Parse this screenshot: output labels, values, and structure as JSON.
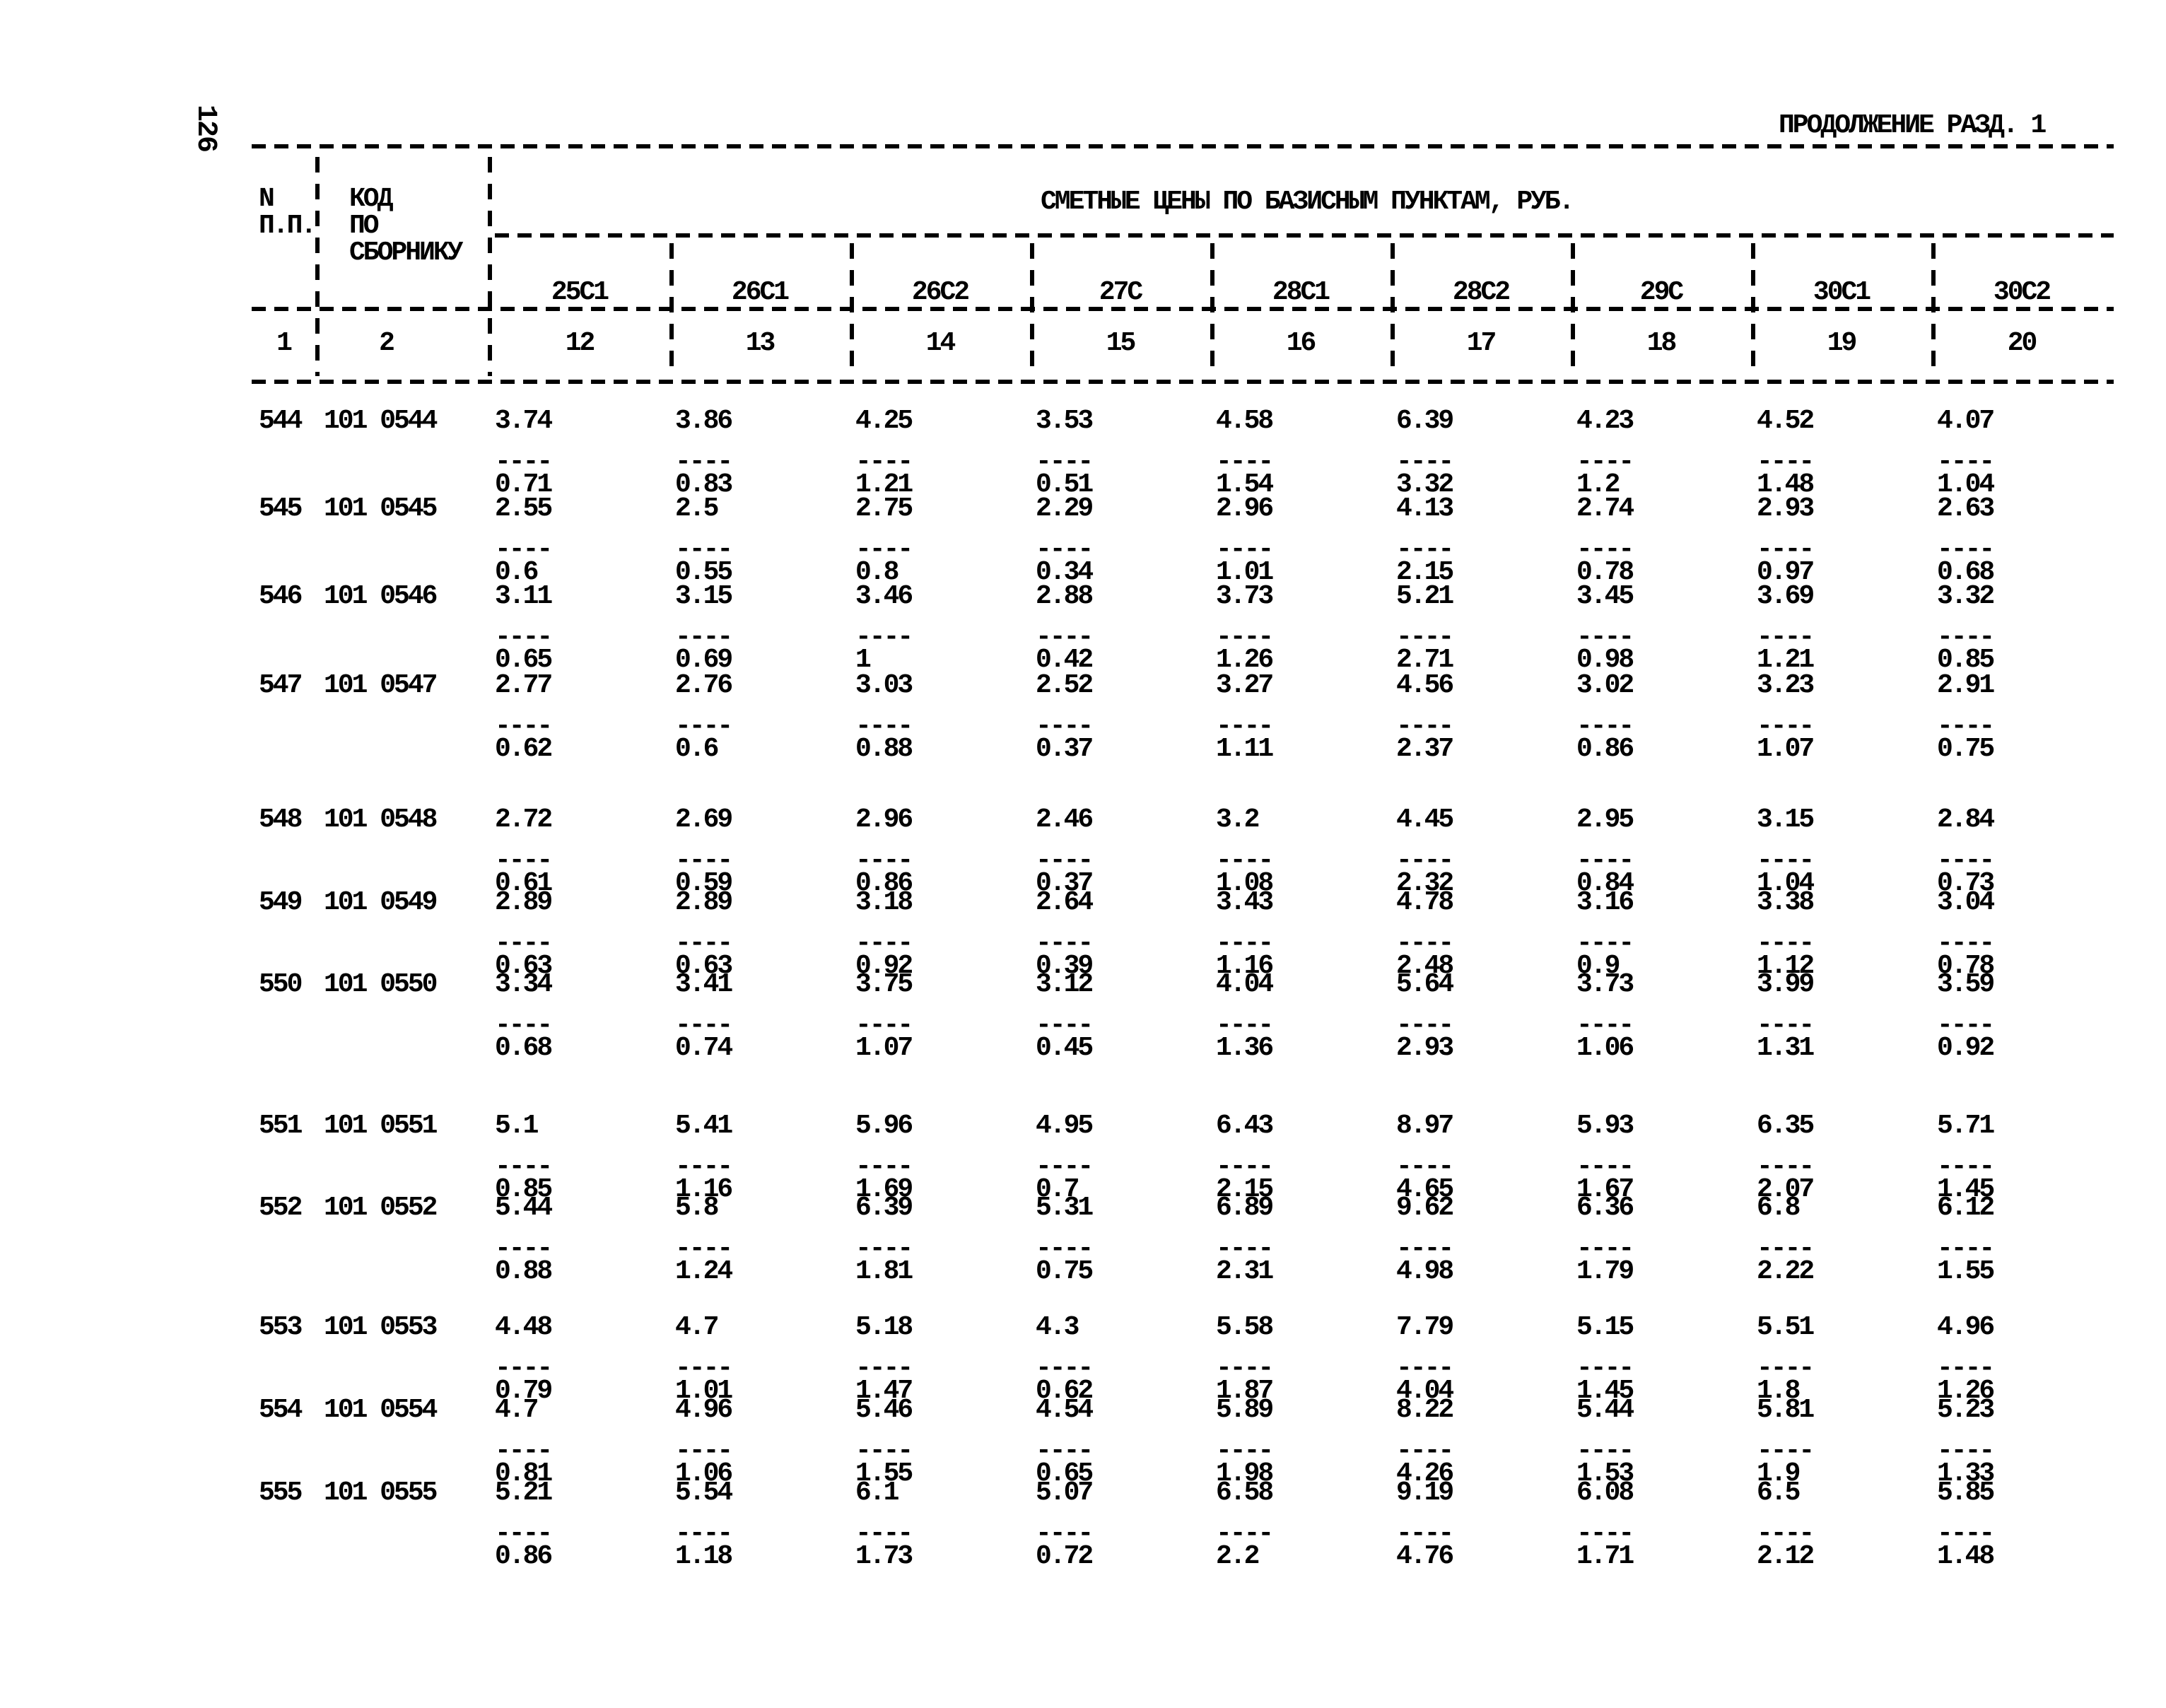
{
  "page": {
    "number": "126"
  },
  "header": {
    "continuation": "ПРОДОЛЖЕНИЕ РАЗД. 1",
    "col_n_line1": "N",
    "col_n_line2": "П.П.",
    "col_code_line1": "КОД",
    "col_code_line2": "ПО",
    "col_code_line3": "СБОРНИКУ",
    "prices_title": "СМЕТНЫЕ ЦЕНЫ ПО БАЗИСНЫМ ПУНКТАМ, РУБ.",
    "price_columns": [
      "25С1",
      "26С1",
      "26С2",
      "27С",
      "28С1",
      "28С2",
      "29С",
      "30С1",
      "30С2"
    ],
    "index_row": [
      "1",
      "2",
      "12",
      "13",
      "14",
      "15",
      "16",
      "17",
      "18",
      "19",
      "20"
    ]
  },
  "table": {
    "fraction_dash": "----",
    "groups": [
      [
        {
          "n": "544",
          "code": "101 0544",
          "cells": [
            [
              "3.74",
              "0.71"
            ],
            [
              "3.86",
              "0.83"
            ],
            [
              "4.25",
              "1.21"
            ],
            [
              "3.53",
              "0.51"
            ],
            [
              "4.58",
              "1.54"
            ],
            [
              "6.39",
              "3.32"
            ],
            [
              "4.23",
              "1.2"
            ],
            [
              "4.52",
              "1.48"
            ],
            [
              "4.07",
              "1.04"
            ]
          ]
        },
        {
          "n": "545",
          "code": "101 0545",
          "cells": [
            [
              "2.55",
              "0.6"
            ],
            [
              "2.5",
              "0.55"
            ],
            [
              "2.75",
              "0.8"
            ],
            [
              "2.29",
              "0.34"
            ],
            [
              "2.96",
              "1.01"
            ],
            [
              "4.13",
              "2.15"
            ],
            [
              "2.74",
              "0.78"
            ],
            [
              "2.93",
              "0.97"
            ],
            [
              "2.63",
              "0.68"
            ]
          ]
        },
        {
          "n": "546",
          "code": "101 0546",
          "cells": [
            [
              "3.11",
              "0.65"
            ],
            [
              "3.15",
              "0.69"
            ],
            [
              "3.46",
              "1"
            ],
            [
              "2.88",
              "0.42"
            ],
            [
              "3.73",
              "1.26"
            ],
            [
              "5.21",
              "2.71"
            ],
            [
              "3.45",
              "0.98"
            ],
            [
              "3.69",
              "1.21"
            ],
            [
              "3.32",
              "0.85"
            ]
          ]
        },
        {
          "n": "547",
          "code": "101 0547",
          "cells": [
            [
              "2.77",
              "0.62"
            ],
            [
              "2.76",
              "0.6"
            ],
            [
              "3.03",
              "0.88"
            ],
            [
              "2.52",
              "0.37"
            ],
            [
              "3.27",
              "1.11"
            ],
            [
              "4.56",
              "2.37"
            ],
            [
              "3.02",
              "0.86"
            ],
            [
              "3.23",
              "1.07"
            ],
            [
              "2.91",
              "0.75"
            ]
          ]
        }
      ],
      [
        {
          "n": "548",
          "code": "101 0548",
          "cells": [
            [
              "2.72",
              "0.61"
            ],
            [
              "2.69",
              "0.59"
            ],
            [
              "2.96",
              "0.86"
            ],
            [
              "2.46",
              "0.37"
            ],
            [
              "3.2",
              "1.08"
            ],
            [
              "4.45",
              "2.32"
            ],
            [
              "2.95",
              "0.84"
            ],
            [
              "3.15",
              "1.04"
            ],
            [
              "2.84",
              "0.73"
            ]
          ]
        },
        {
          "n": "549",
          "code": "101 0549",
          "cells": [
            [
              "2.89",
              "0.63"
            ],
            [
              "2.89",
              "0.63"
            ],
            [
              "3.18",
              "0.92"
            ],
            [
              "2.64",
              "0.39"
            ],
            [
              "3.43",
              "1.16"
            ],
            [
              "4.78",
              "2.48"
            ],
            [
              "3.16",
              "0.9"
            ],
            [
              "3.38",
              "1.12"
            ],
            [
              "3.04",
              "0.78"
            ]
          ]
        },
        {
          "n": "550",
          "code": "101 0550",
          "cells": [
            [
              "3.34",
              "0.68"
            ],
            [
              "3.41",
              "0.74"
            ],
            [
              "3.75",
              "1.07"
            ],
            [
              "3.12",
              "0.45"
            ],
            [
              "4.04",
              "1.36"
            ],
            [
              "5.64",
              "2.93"
            ],
            [
              "3.73",
              "1.06"
            ],
            [
              "3.99",
              "1.31"
            ],
            [
              "3.59",
              "0.92"
            ]
          ]
        }
      ],
      [
        {
          "n": "551",
          "code": "101 0551",
          "cells": [
            [
              "5.1",
              "0.85"
            ],
            [
              "5.41",
              "1.16"
            ],
            [
              "5.96",
              "1.69"
            ],
            [
              "4.95",
              "0.7"
            ],
            [
              "6.43",
              "2.15"
            ],
            [
              "8.97",
              "4.65"
            ],
            [
              "5.93",
              "1.67"
            ],
            [
              "6.35",
              "2.07"
            ],
            [
              "5.71",
              "1.45"
            ]
          ]
        },
        {
          "n": "552",
          "code": "101 0552",
          "cells": [
            [
              "5.44",
              "0.88"
            ],
            [
              "5.8",
              "1.24"
            ],
            [
              "6.39",
              "1.81"
            ],
            [
              "5.31",
              "0.75"
            ],
            [
              "6.89",
              "2.31"
            ],
            [
              "9.62",
              "4.98"
            ],
            [
              "6.36",
              "1.79"
            ],
            [
              "6.8",
              "2.22"
            ],
            [
              "6.12",
              "1.55"
            ]
          ]
        }
      ],
      [
        {
          "n": "553",
          "code": "101 0553",
          "cells": [
            [
              "4.48",
              "0.79"
            ],
            [
              "4.7",
              "1.01"
            ],
            [
              "5.18",
              "1.47"
            ],
            [
              "4.3",
              "0.62"
            ],
            [
              "5.58",
              "1.87"
            ],
            [
              "7.79",
              "4.04"
            ],
            [
              "5.15",
              "1.45"
            ],
            [
              "5.51",
              "1.8"
            ],
            [
              "4.96",
              "1.26"
            ]
          ]
        },
        {
          "n": "554",
          "code": "101 0554",
          "cells": [
            [
              "4.7",
              "0.81"
            ],
            [
              "4.96",
              "1.06"
            ],
            [
              "5.46",
              "1.55"
            ],
            [
              "4.54",
              "0.65"
            ],
            [
              "5.89",
              "1.98"
            ],
            [
              "8.22",
              "4.26"
            ],
            [
              "5.44",
              "1.53"
            ],
            [
              "5.81",
              "1.9"
            ],
            [
              "5.23",
              "1.33"
            ]
          ]
        },
        {
          "n": "555",
          "code": "101 0555",
          "cells": [
            [
              "5.21",
              "0.86"
            ],
            [
              "5.54",
              "1.18"
            ],
            [
              "6.1",
              "1.73"
            ],
            [
              "5.07",
              "0.72"
            ],
            [
              "6.58",
              "2.2"
            ],
            [
              "9.19",
              "4.76"
            ],
            [
              "6.08",
              "1.71"
            ],
            [
              "6.5",
              "2.12"
            ],
            [
              "5.85",
              "1.48"
            ]
          ]
        }
      ]
    ]
  }
}
